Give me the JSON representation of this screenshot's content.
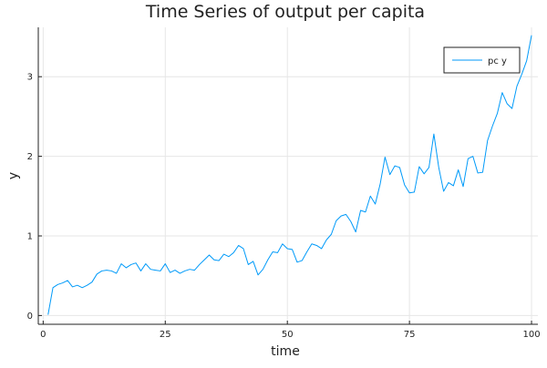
{
  "chart_data": {
    "type": "line",
    "title": "Time Series of output per capita",
    "xlabel": "time",
    "ylabel": "y",
    "xlim": [
      1,
      100
    ],
    "ylim": [
      0,
      3.55
    ],
    "xticks": [
      0,
      25,
      50,
      75,
      100
    ],
    "yticks": [
      0,
      1,
      2,
      3
    ],
    "grid": true,
    "legend_position": "top-right",
    "series": [
      {
        "name": "pc y",
        "color": "#009AF9",
        "x": [
          1,
          2,
          3,
          4,
          5,
          6,
          7,
          8,
          9,
          10,
          11,
          12,
          13,
          14,
          15,
          16,
          17,
          18,
          19,
          20,
          21,
          22,
          23,
          24,
          25,
          26,
          27,
          28,
          29,
          30,
          31,
          32,
          33,
          34,
          35,
          36,
          37,
          38,
          39,
          40,
          41,
          42,
          43,
          44,
          45,
          46,
          47,
          48,
          49,
          50,
          51,
          52,
          53,
          54,
          55,
          56,
          57,
          58,
          59,
          60,
          61,
          62,
          63,
          64,
          65,
          66,
          67,
          68,
          69,
          70,
          71,
          72,
          73,
          74,
          75,
          76,
          77,
          78,
          79,
          80,
          81,
          82,
          83,
          84,
          85,
          86,
          87,
          88,
          89,
          90,
          91,
          92,
          93,
          94,
          95,
          96,
          97,
          98,
          99,
          100
        ],
        "values": [
          0.01,
          0.35,
          0.39,
          0.41,
          0.44,
          0.36,
          0.38,
          0.35,
          0.38,
          0.42,
          0.52,
          0.56,
          0.57,
          0.56,
          0.53,
          0.65,
          0.6,
          0.64,
          0.66,
          0.56,
          0.65,
          0.58,
          0.57,
          0.56,
          0.65,
          0.54,
          0.57,
          0.53,
          0.56,
          0.58,
          0.57,
          0.64,
          0.7,
          0.76,
          0.7,
          0.69,
          0.77,
          0.74,
          0.79,
          0.88,
          0.84,
          0.64,
          0.68,
          0.51,
          0.58,
          0.7,
          0.8,
          0.79,
          0.9,
          0.84,
          0.83,
          0.67,
          0.69,
          0.8,
          0.9,
          0.88,
          0.84,
          0.95,
          1.02,
          1.19,
          1.25,
          1.27,
          1.18,
          1.05,
          1.32,
          1.3,
          1.5,
          1.4,
          1.65,
          1.99,
          1.77,
          1.88,
          1.86,
          1.64,
          1.54,
          1.55,
          1.87,
          1.78,
          1.86,
          2.28,
          1.86,
          1.56,
          1.67,
          1.63,
          1.83,
          1.62,
          1.97,
          2.0,
          1.79,
          1.8,
          2.2,
          2.38,
          2.54,
          2.8,
          2.66,
          2.6,
          2.88,
          3.03,
          3.2,
          3.52
        ]
      }
    ]
  }
}
